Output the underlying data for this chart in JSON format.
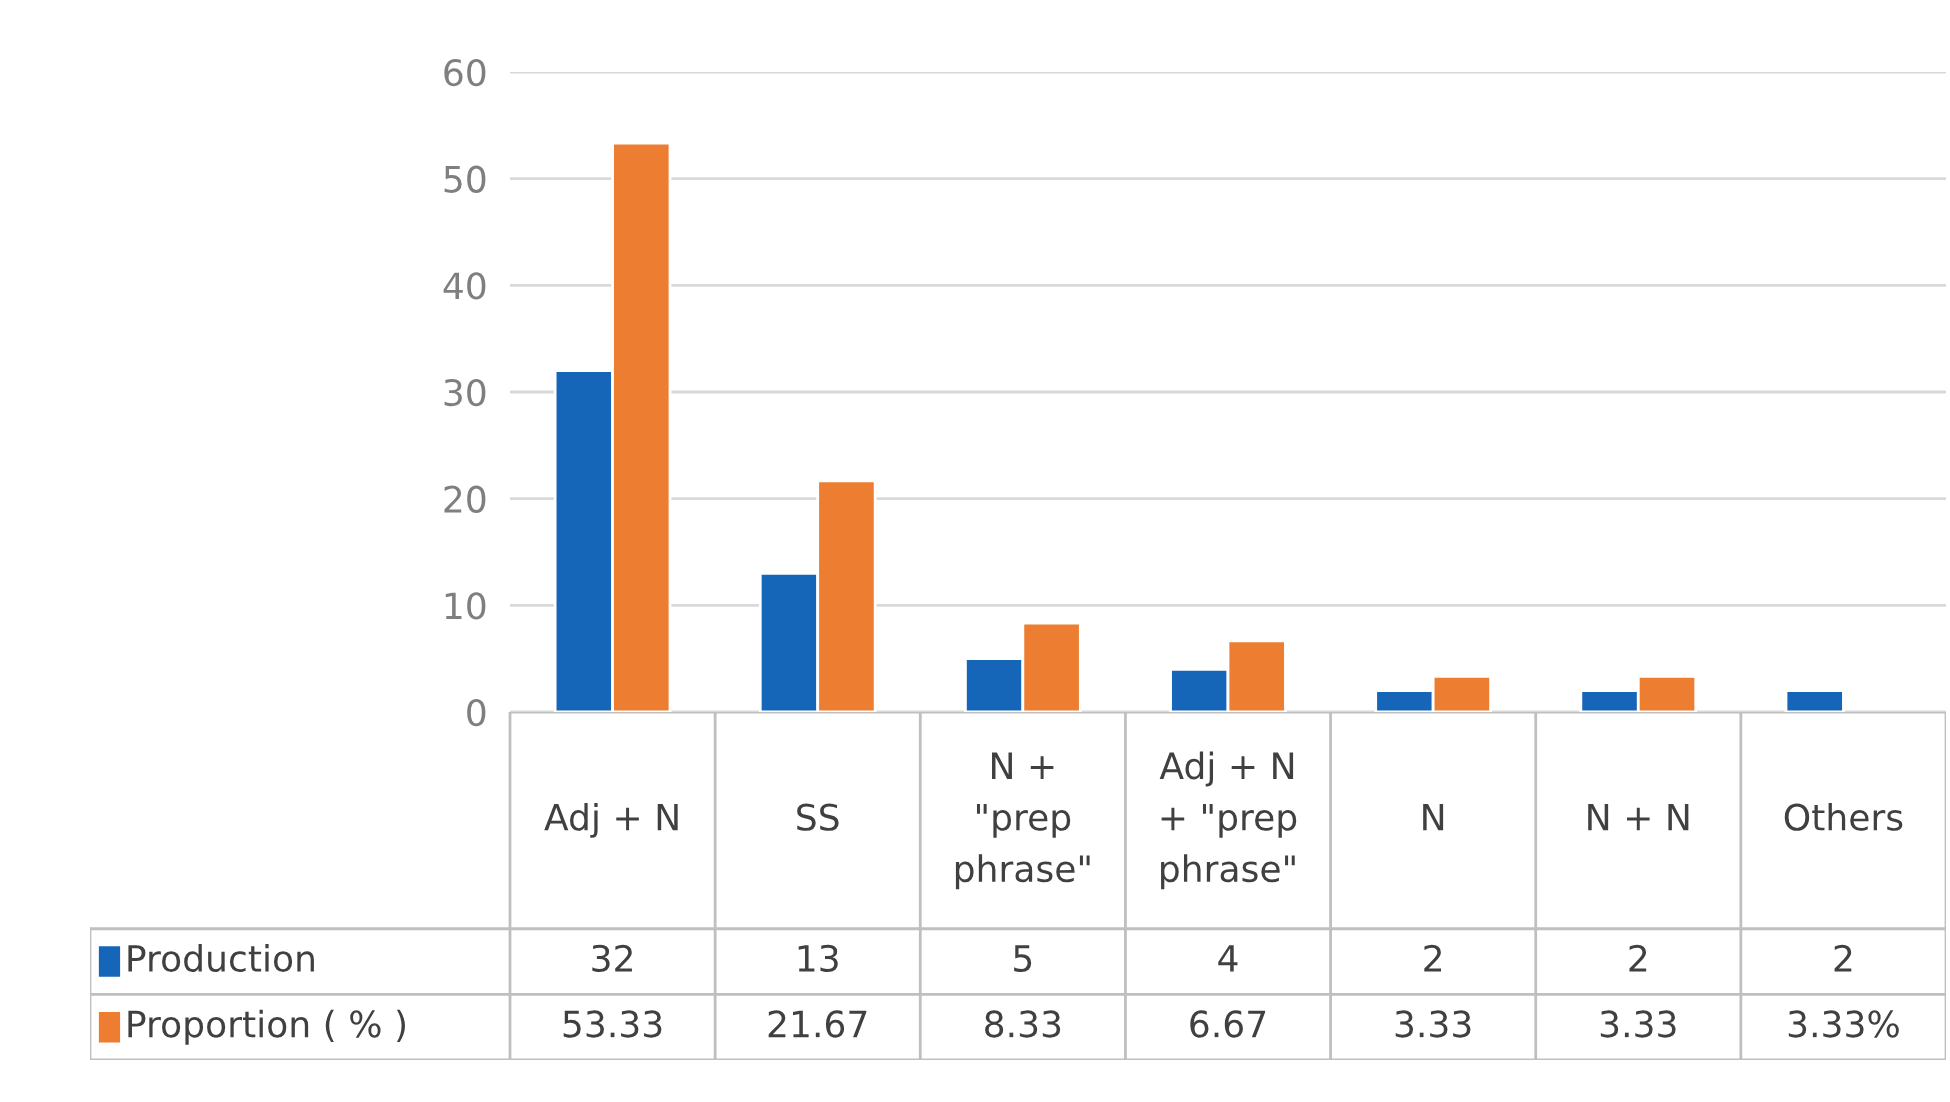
{
  "chart_data": {
    "type": "bar",
    "categories": [
      "Adj + N",
      "SS",
      "N +\n\"prep\nphrase\"",
      "Adj + N\n+ \"prep\nphrase\"",
      "N",
      "N + N",
      "Others"
    ],
    "series": [
      {
        "name": "Production",
        "color": "#1565b8",
        "values": [
          32,
          13,
          5,
          4,
          2,
          2,
          2
        ],
        "value_labels": [
          "32",
          "13",
          "5",
          "4",
          "2",
          "2",
          "2"
        ]
      },
      {
        "name": "Proportion ( % )",
        "color": "#ed7d31",
        "values": [
          53.33,
          21.67,
          8.33,
          6.67,
          3.33,
          3.33,
          null
        ],
        "value_labels": [
          "53.33",
          "21.67",
          "8.33",
          "6.67",
          "3.33",
          "3.33",
          "3.33%"
        ]
      }
    ],
    "ylim": [
      0,
      60
    ],
    "yticks": [
      0,
      10,
      20,
      30,
      40,
      50,
      60
    ],
    "grid": "y",
    "legend": "bottom"
  }
}
